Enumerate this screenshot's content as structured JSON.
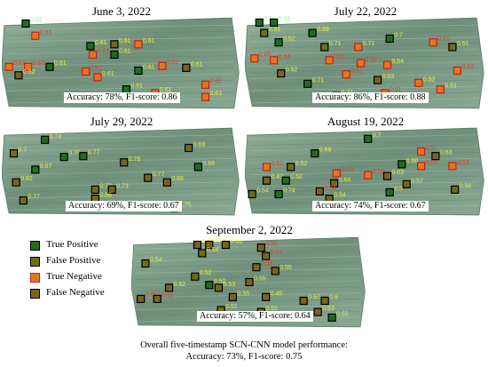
{
  "legend": [
    {
      "label": "True Positive",
      "fill": "#1f6e1f",
      "stroke": "#000000"
    },
    {
      "label": "False Positive",
      "fill": "#6e6e1a",
      "stroke": "#000000"
    },
    {
      "label": "True Negative",
      "fill": "#e2771a",
      "stroke": "#c22020"
    },
    {
      "label": "False Negative",
      "fill": "#7a6220",
      "stroke": "#000000"
    }
  ],
  "colors": {
    "tp": "#1f6e1f",
    "fp": "#6e6e1a",
    "tn": "#e2771a",
    "fn": "#7a6220",
    "label_yellow": "#eeee33",
    "label_red": "#e0402a",
    "label_green": "#9ce79c"
  },
  "panels": [
    {
      "id": "june3",
      "date": "June 3, 2022",
      "metrics": "Accuracy: 78%, F1-score: 0.86",
      "markers": [
        {
          "x": 0.1,
          "y": 0.08,
          "t": "tp",
          "v": "0.62",
          "lc": "label_green"
        },
        {
          "x": 0.14,
          "y": 0.21,
          "t": "tn",
          "v": "0.61",
          "lc": "label_red"
        },
        {
          "x": 0.37,
          "y": 0.32,
          "t": "tp",
          "v": "0.61",
          "lc": "label_yellow"
        },
        {
          "x": 0.47,
          "y": 0.3,
          "t": "fn",
          "v": "0.61",
          "lc": "label_yellow"
        },
        {
          "x": 0.57,
          "y": 0.3,
          "t": "tn",
          "v": "0.61",
          "lc": "label_yellow"
        },
        {
          "x": 0.38,
          "y": 0.41,
          "t": "tn",
          "v": "0.61",
          "lc": "label_red"
        },
        {
          "x": 0.47,
          "y": 0.41,
          "t": "tp",
          "v": "0.61",
          "lc": "label_yellow"
        },
        {
          "x": 0.03,
          "y": 0.54,
          "t": "tn",
          "v": "0.62",
          "lc": "label_red"
        },
        {
          "x": 0.11,
          "y": 0.54,
          "t": "tn",
          "v": "0.62",
          "lc": "label_red"
        },
        {
          "x": 0.2,
          "y": 0.54,
          "t": "tp",
          "v": "0.61",
          "lc": "label_yellow"
        },
        {
          "x": 0.07,
          "y": 0.63,
          "t": "fn",
          "v": "0.62",
          "lc": "label_yellow"
        },
        {
          "x": 0.35,
          "y": 0.59,
          "t": "tn",
          "v": "0.61",
          "lc": "label_red"
        },
        {
          "x": 0.4,
          "y": 0.65,
          "t": "tn",
          "v": "0.61",
          "lc": "label_yellow"
        },
        {
          "x": 0.57,
          "y": 0.58,
          "t": "tp",
          "v": "0.61",
          "lc": "label_yellow"
        },
        {
          "x": 0.67,
          "y": 0.53,
          "t": "tn",
          "v": "0.62",
          "lc": "label_red"
        },
        {
          "x": 0.77,
          "y": 0.55,
          "t": "fn",
          "v": "0.61",
          "lc": "label_yellow"
        },
        {
          "x": 0.52,
          "y": 0.78,
          "t": "tp",
          "v": "0.61",
          "lc": "label_yellow"
        },
        {
          "x": 0.64,
          "y": 0.82,
          "t": "tn",
          "v": "0.61",
          "lc": "label_yellow"
        },
        {
          "x": 0.85,
          "y": 0.73,
          "t": "tn",
          "v": "0.62",
          "lc": "label_red"
        },
        {
          "x": 0.85,
          "y": 0.86,
          "t": "tn",
          "v": "0.61",
          "lc": "label_yellow"
        }
      ]
    },
    {
      "id": "july22",
      "date": "July 22, 2022",
      "metrics": "Accuracy: 86%, F1-score: 0.88",
      "markers": [
        {
          "x": 0.06,
          "y": 0.07,
          "t": "tp",
          "v": "0.51",
          "lc": "label_green"
        },
        {
          "x": 0.12,
          "y": 0.07,
          "t": "tp",
          "v": "0.55",
          "lc": "label_green"
        },
        {
          "x": 0.08,
          "y": 0.18,
          "t": "fp",
          "v": "0.51",
          "lc": "label_yellow"
        },
        {
          "x": 0.14,
          "y": 0.28,
          "t": "tp",
          "v": "0.52",
          "lc": "label_yellow"
        },
        {
          "x": 0.28,
          "y": 0.18,
          "t": "tp",
          "v": "0.69",
          "lc": "label_yellow"
        },
        {
          "x": 0.04,
          "y": 0.45,
          "t": "tn",
          "v": "0.85",
          "lc": "label_red"
        },
        {
          "x": 0.12,
          "y": 0.47,
          "t": "tn",
          "v": "0.54",
          "lc": "label_red"
        },
        {
          "x": 0.33,
          "y": 0.33,
          "t": "fp",
          "v": "0.71",
          "lc": "label_yellow"
        },
        {
          "x": 0.47,
          "y": 0.33,
          "t": "tn",
          "v": "0.71",
          "lc": "label_yellow"
        },
        {
          "x": 0.6,
          "y": 0.24,
          "t": "tp",
          "v": "0.7",
          "lc": "label_yellow"
        },
        {
          "x": 0.78,
          "y": 0.28,
          "t": "tn",
          "v": "0.51",
          "lc": "label_red"
        },
        {
          "x": 0.86,
          "y": 0.33,
          "t": "fp",
          "v": "0.51",
          "lc": "label_yellow"
        },
        {
          "x": 0.15,
          "y": 0.61,
          "t": "fn",
          "v": "0.52",
          "lc": "label_yellow"
        },
        {
          "x": 0.35,
          "y": 0.47,
          "t": "tn",
          "v": "0.51",
          "lc": "label_red"
        },
        {
          "x": 0.48,
          "y": 0.5,
          "t": "tn",
          "v": "0.52",
          "lc": "label_red"
        },
        {
          "x": 0.59,
          "y": 0.52,
          "t": "tn",
          "v": "0.54",
          "lc": "label_yellow"
        },
        {
          "x": 0.26,
          "y": 0.72,
          "t": "tp",
          "v": "0.71",
          "lc": "label_yellow"
        },
        {
          "x": 0.42,
          "y": 0.62,
          "t": "tn",
          "v": "0.51",
          "lc": "label_red"
        },
        {
          "x": 0.55,
          "y": 0.68,
          "t": "fn",
          "v": "0.53",
          "lc": "label_yellow"
        },
        {
          "x": 0.72,
          "y": 0.71,
          "t": "tn",
          "v": "0.52",
          "lc": "label_yellow"
        },
        {
          "x": 0.88,
          "y": 0.58,
          "t": "tn",
          "v": "0.52",
          "lc": "label_red"
        },
        {
          "x": 0.38,
          "y": 0.85,
          "t": "tp",
          "v": "0.71",
          "lc": "label_yellow"
        },
        {
          "x": 0.58,
          "y": 0.82,
          "t": "tn",
          "v": "0.51",
          "lc": "label_red"
        },
        {
          "x": 0.81,
          "y": 0.78,
          "t": "tn",
          "v": "0.51",
          "lc": "label_yellow"
        }
      ]
    },
    {
      "id": "july29",
      "date": "July 29, 2022",
      "metrics": "Accuracy: 69%, F1-score: 0.67",
      "markers": [
        {
          "x": 0.18,
          "y": 0.15,
          "t": "tp",
          "v": "0.74",
          "lc": "label_yellow"
        },
        {
          "x": 0.05,
          "y": 0.3,
          "t": "fp",
          "v": "0.7",
          "lc": "label_yellow"
        },
        {
          "x": 0.26,
          "y": 0.34,
          "t": "tp",
          "v": "0.75",
          "lc": "label_yellow"
        },
        {
          "x": 0.34,
          "y": 0.33,
          "t": "tp",
          "v": "0.77",
          "lc": "label_yellow"
        },
        {
          "x": 0.51,
          "y": 0.4,
          "t": "fn",
          "v": "0.76",
          "lc": "label_yellow"
        },
        {
          "x": 0.78,
          "y": 0.24,
          "t": "fn",
          "v": "0.69",
          "lc": "label_yellow"
        },
        {
          "x": 0.82,
          "y": 0.45,
          "t": "tp",
          "v": "0.68",
          "lc": "label_yellow"
        },
        {
          "x": 0.14,
          "y": 0.48,
          "t": "tp",
          "v": "0.67",
          "lc": "label_yellow"
        },
        {
          "x": 0.06,
          "y": 0.62,
          "t": "fn",
          "v": "0.82",
          "lc": "label_yellow"
        },
        {
          "x": 0.61,
          "y": 0.57,
          "t": "fn",
          "v": "0.77",
          "lc": "label_yellow"
        },
        {
          "x": 0.69,
          "y": 0.62,
          "t": "fn",
          "v": "0.69",
          "lc": "label_yellow"
        },
        {
          "x": 0.39,
          "y": 0.7,
          "t": "fp",
          "v": "0.77",
          "lc": "label_yellow"
        },
        {
          "x": 0.46,
          "y": 0.7,
          "t": "fn",
          "v": "0.73",
          "lc": "label_yellow"
        },
        {
          "x": 0.39,
          "y": 0.8,
          "t": "fn",
          "v": "0.66",
          "lc": "label_yellow"
        },
        {
          "x": 0.09,
          "y": 0.82,
          "t": "fp",
          "v": "0.77",
          "lc": "label_yellow"
        },
        {
          "x": 0.72,
          "y": 0.9,
          "t": "tp",
          "v": "0.76",
          "lc": "label_yellow"
        }
      ]
    },
    {
      "id": "aug19",
      "date": "August 19, 2022",
      "metrics": "Accuracy: 74%, F1-score: 0.67",
      "markers": [
        {
          "x": 0.51,
          "y": 0.14,
          "t": "tp",
          "v": "0.7",
          "lc": "label_yellow"
        },
        {
          "x": 0.29,
          "y": 0.3,
          "t": "tp",
          "v": "0.69",
          "lc": "label_yellow"
        },
        {
          "x": 0.73,
          "y": 0.28,
          "t": "tn",
          "v": "0.57",
          "lc": "label_red"
        },
        {
          "x": 0.79,
          "y": 0.33,
          "t": "fn",
          "v": "0.63",
          "lc": "label_yellow"
        },
        {
          "x": 0.09,
          "y": 0.45,
          "t": "tn",
          "v": "0.52",
          "lc": "label_red"
        },
        {
          "x": 0.19,
          "y": 0.45,
          "t": "fp",
          "v": "0.52",
          "lc": "label_yellow"
        },
        {
          "x": 0.65,
          "y": 0.42,
          "t": "tp",
          "v": "0.66",
          "lc": "label_yellow"
        },
        {
          "x": 0.73,
          "y": 0.44,
          "t": "tn",
          "v": "0.61",
          "lc": "label_red"
        },
        {
          "x": 0.86,
          "y": 0.44,
          "t": "tn",
          "v": "0.53",
          "lc": "label_red"
        },
        {
          "x": 0.38,
          "y": 0.52,
          "t": "tn",
          "v": "0.53",
          "lc": "label_red"
        },
        {
          "x": 0.51,
          "y": 0.54,
          "t": "tn",
          "v": "0.56",
          "lc": "label_red"
        },
        {
          "x": 0.59,
          "y": 0.55,
          "t": "fn",
          "v": "0.63",
          "lc": "label_yellow"
        },
        {
          "x": 0.09,
          "y": 0.6,
          "t": "fn",
          "v": "0.43",
          "lc": "label_yellow"
        },
        {
          "x": 0.17,
          "y": 0.6,
          "t": "tp",
          "v": "0.52",
          "lc": "label_yellow"
        },
        {
          "x": 0.37,
          "y": 0.63,
          "t": "fn",
          "v": "0.64",
          "lc": "label_yellow"
        },
        {
          "x": 0.67,
          "y": 0.64,
          "t": "fp",
          "v": "0.57",
          "lc": "label_yellow"
        },
        {
          "x": 0.03,
          "y": 0.75,
          "t": "fp",
          "v": "0.54",
          "lc": "label_yellow"
        },
        {
          "x": 0.14,
          "y": 0.75,
          "t": "tp",
          "v": "0.74",
          "lc": "label_yellow"
        },
        {
          "x": 0.31,
          "y": 0.72,
          "t": "fn",
          "v": "0.54",
          "lc": "label_red"
        },
        {
          "x": 0.35,
          "y": 0.8,
          "t": "fn",
          "v": "0.54",
          "lc": "label_yellow"
        },
        {
          "x": 0.6,
          "y": 0.73,
          "t": "tp",
          "v": "0.5",
          "lc": "label_yellow"
        },
        {
          "x": 0.87,
          "y": 0.7,
          "t": "fp",
          "v": "0.56",
          "lc": "label_yellow"
        }
      ]
    },
    {
      "id": "sep2",
      "date": "September 2, 2022",
      "metrics": "Accuracy: 57%, F1-score: 0.64",
      "markers": [
        {
          "x": 0.28,
          "y": 0.1,
          "t": "fn",
          "v": "0.61",
          "lc": "label_yellow"
        },
        {
          "x": 0.33,
          "y": 0.1,
          "t": "fn",
          "v": "0.53",
          "lc": "label_yellow"
        },
        {
          "x": 0.4,
          "y": 0.1,
          "t": "fp",
          "v": "0.63",
          "lc": "label_yellow"
        },
        {
          "x": 0.3,
          "y": 0.19,
          "t": "fp",
          "v": "0.54",
          "lc": "label_yellow"
        },
        {
          "x": 0.55,
          "y": 0.13,
          "t": "fn",
          "v": "0.55",
          "lc": "label_red"
        },
        {
          "x": 0.57,
          "y": 0.22,
          "t": "fn",
          "v": "0.53",
          "lc": "label_red"
        },
        {
          "x": 0.06,
          "y": 0.3,
          "t": "fp",
          "v": "0.54",
          "lc": "label_yellow"
        },
        {
          "x": 0.53,
          "y": 0.34,
          "t": "fn",
          "v": "0.55",
          "lc": "label_red"
        },
        {
          "x": 0.61,
          "y": 0.38,
          "t": "fn",
          "v": "0.55",
          "lc": "label_yellow"
        },
        {
          "x": 0.27,
          "y": 0.44,
          "t": "fp",
          "v": "0.52",
          "lc": "label_yellow"
        },
        {
          "x": 0.16,
          "y": 0.56,
          "t": "fn",
          "v": "0.52",
          "lc": "label_yellow"
        },
        {
          "x": 0.33,
          "y": 0.53,
          "t": "tp",
          "v": "0.52",
          "lc": "label_yellow"
        },
        {
          "x": 0.37,
          "y": 0.56,
          "t": "fp",
          "v": "0.53",
          "lc": "label_yellow"
        },
        {
          "x": 0.5,
          "y": 0.5,
          "t": "fn",
          "v": "0.55",
          "lc": "label_yellow"
        },
        {
          "x": 0.04,
          "y": 0.68,
          "t": "fn",
          "v": "0.55",
          "lc": "label_red"
        },
        {
          "x": 0.11,
          "y": 0.68,
          "t": "fn",
          "v": "0.51",
          "lc": "label_red"
        },
        {
          "x": 0.43,
          "y": 0.66,
          "t": "fn",
          "v": "0.55",
          "lc": "label_yellow"
        },
        {
          "x": 0.57,
          "y": 0.66,
          "t": "fn",
          "v": "0.45",
          "lc": "label_yellow"
        },
        {
          "x": 0.73,
          "y": 0.7,
          "t": "fn",
          "v": "0.57",
          "lc": "label_yellow"
        },
        {
          "x": 0.82,
          "y": 0.7,
          "t": "fn",
          "v": "0.6",
          "lc": "label_yellow"
        },
        {
          "x": 0.38,
          "y": 0.8,
          "t": "fp",
          "v": "0.51",
          "lc": "label_yellow"
        },
        {
          "x": 0.55,
          "y": 0.82,
          "t": "fn",
          "v": "0.51",
          "lc": "label_yellow"
        },
        {
          "x": 0.79,
          "y": 0.82,
          "t": "fn",
          "v": "0.53",
          "lc": "label_yellow"
        },
        {
          "x": 0.85,
          "y": 0.88,
          "t": "tp",
          "v": "0.55",
          "lc": "label_yellow"
        }
      ]
    }
  ],
  "footer": {
    "line1": "Overall five-timestamp SCN-CNN model performance:",
    "line2": "Accuracy: 73%, F1-score: 0.75"
  }
}
